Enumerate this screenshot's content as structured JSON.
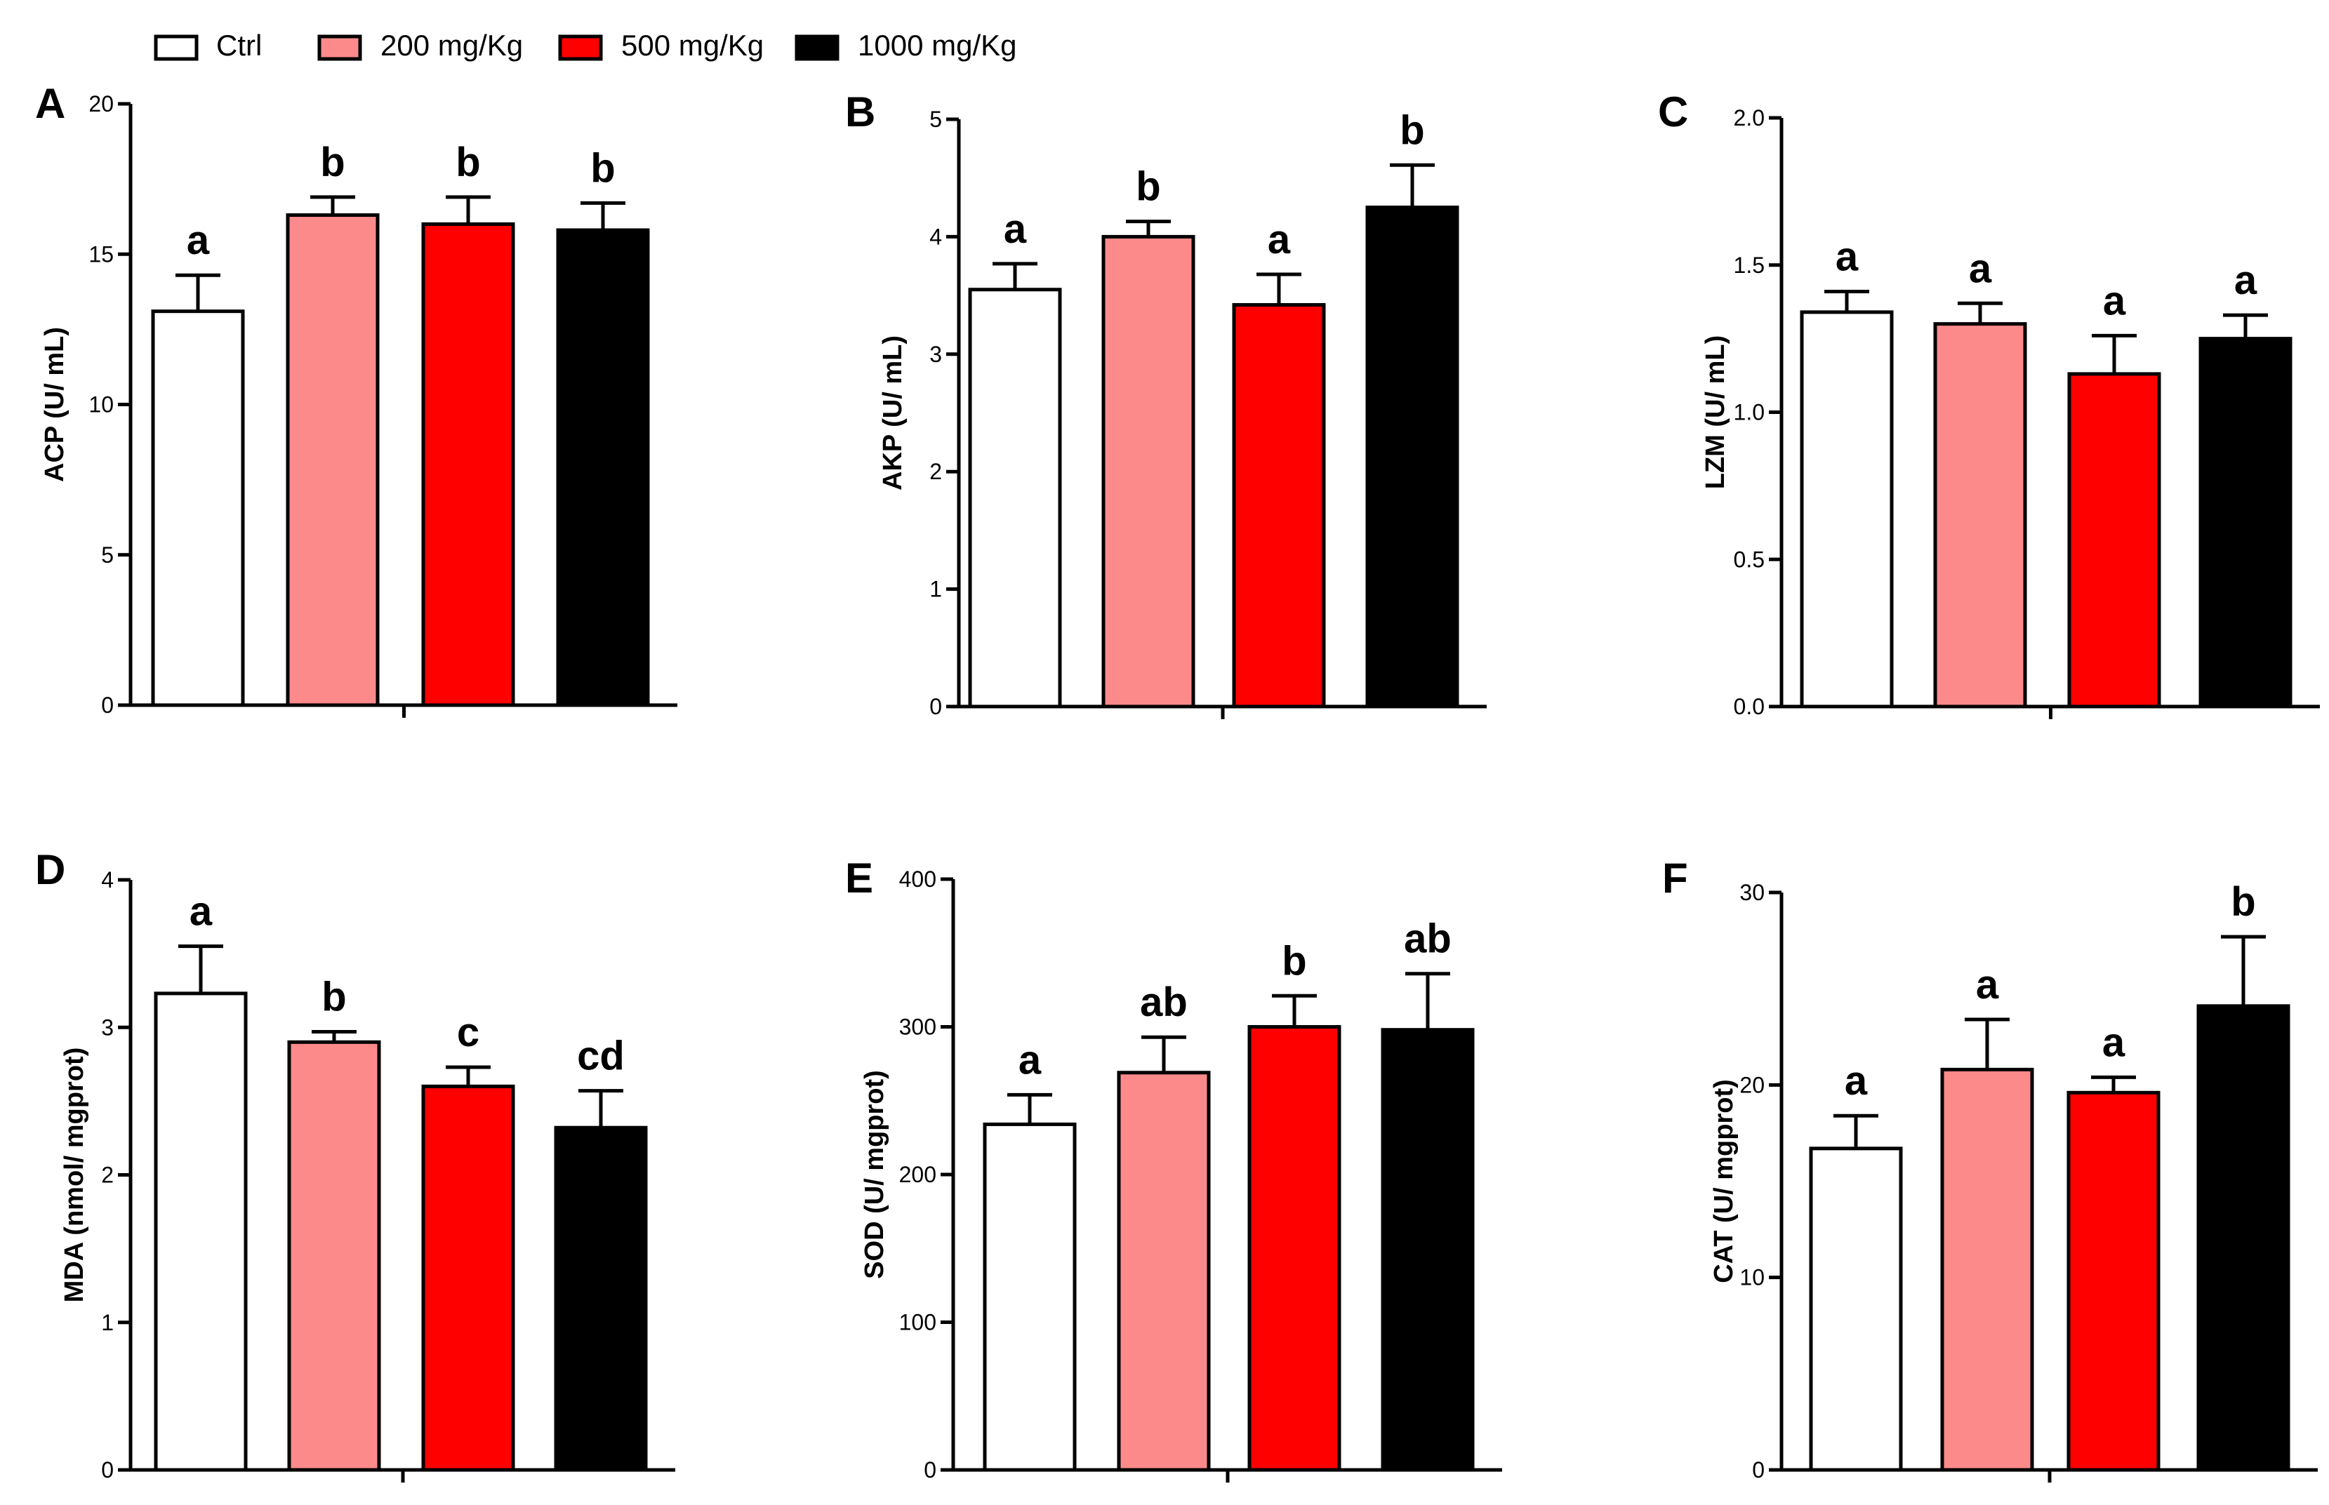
{
  "legend": {
    "items": [
      {
        "label": "Ctrl",
        "color": "#ffffff"
      },
      {
        "label": "200 mg/Kg",
        "color": "#fd8a8a"
      },
      {
        "label": "500 mg/Kg",
        "color": "#ff0000"
      },
      {
        "label": "1000 mg/Kg",
        "color": "#000000"
      }
    ]
  },
  "chart_data": [
    {
      "panel": "A",
      "type": "bar",
      "ylabel": "ACP (U/ mL)",
      "ylim": [
        0,
        20
      ],
      "yticks": [
        0,
        5,
        10,
        15,
        20
      ],
      "tick_labels": [
        "0",
        "5",
        "10",
        "15",
        "20"
      ],
      "categories": [
        "Ctrl",
        "200 mg/Kg",
        "500 mg/Kg",
        "1000 mg/Kg"
      ],
      "values": [
        13.1,
        16.3,
        16.0,
        15.8
      ],
      "errors": [
        1.2,
        0.6,
        0.9,
        0.9
      ],
      "letters": [
        "a",
        "b",
        "b",
        "b"
      ]
    },
    {
      "panel": "B",
      "type": "bar",
      "ylabel": "AKP (U/ mL)",
      "ylim": [
        0,
        5
      ],
      "yticks": [
        0,
        1,
        2,
        3,
        4,
        5
      ],
      "tick_labels": [
        "0",
        "1",
        "2",
        "3",
        "4",
        "5"
      ],
      "categories": [
        "Ctrl",
        "200 mg/Kg",
        "500 mg/Kg",
        "1000 mg/Kg"
      ],
      "values": [
        3.55,
        4.0,
        3.42,
        4.25
      ],
      "errors": [
        0.22,
        0.13,
        0.26,
        0.36
      ],
      "letters": [
        "a",
        "b",
        "a",
        "b"
      ]
    },
    {
      "panel": "C",
      "type": "bar",
      "ylabel": "LZM (U/ mL)",
      "ylim": [
        0,
        2.0
      ],
      "yticks": [
        0,
        0.5,
        1.0,
        1.5,
        2.0
      ],
      "tick_labels": [
        "0.0",
        "0.5",
        "1.0",
        "1.5",
        "2.0"
      ],
      "categories": [
        "Ctrl",
        "200 mg/Kg",
        "500 mg/Kg",
        "1000 mg/Kg"
      ],
      "values": [
        1.34,
        1.3,
        1.13,
        1.25
      ],
      "errors": [
        0.07,
        0.07,
        0.13,
        0.08
      ],
      "letters": [
        "a",
        "a",
        "a",
        "a"
      ]
    },
    {
      "panel": "D",
      "type": "bar",
      "ylabel": "MDA (nmol/ mgprot)",
      "ylim": [
        0,
        4
      ],
      "yticks": [
        0,
        1,
        2,
        3,
        4
      ],
      "tick_labels": [
        "0",
        "1",
        "2",
        "3",
        "4"
      ],
      "categories": [
        "Ctrl",
        "200 mg/Kg",
        "500 mg/Kg",
        "1000 mg/Kg"
      ],
      "values": [
        3.23,
        2.9,
        2.6,
        2.32
      ],
      "errors": [
        0.32,
        0.07,
        0.13,
        0.25
      ],
      "letters": [
        "a",
        "b",
        "c",
        "cd"
      ]
    },
    {
      "panel": "E",
      "type": "bar",
      "ylabel": "SOD (U/ mgprot)",
      "ylim": [
        0,
        400
      ],
      "yticks": [
        0,
        100,
        200,
        300,
        400
      ],
      "tick_labels": [
        "0",
        "100",
        "200",
        "300",
        "400"
      ],
      "categories": [
        "Ctrl",
        "200 mg/Kg",
        "500 mg/Kg",
        "1000 mg/Kg"
      ],
      "values": [
        234,
        269,
        300,
        298
      ],
      "errors": [
        20,
        24,
        21,
        38
      ],
      "letters": [
        "a",
        "ab",
        "b",
        "ab"
      ]
    },
    {
      "panel": "F",
      "type": "bar",
      "ylabel": "CAT (U/ mgprot)",
      "ylim": [
        0,
        30
      ],
      "yticks": [
        0,
        10,
        20,
        30
      ],
      "tick_labels": [
        "0",
        "10",
        "20",
        "30"
      ],
      "categories": [
        "Ctrl",
        "200 mg/Kg",
        "500 mg/Kg",
        "1000 mg/Kg"
      ],
      "values": [
        16.7,
        20.8,
        19.6,
        24.1
      ],
      "errors": [
        1.7,
        2.6,
        0.8,
        3.6
      ],
      "letters": [
        "a",
        "a",
        "a",
        "b"
      ]
    }
  ]
}
